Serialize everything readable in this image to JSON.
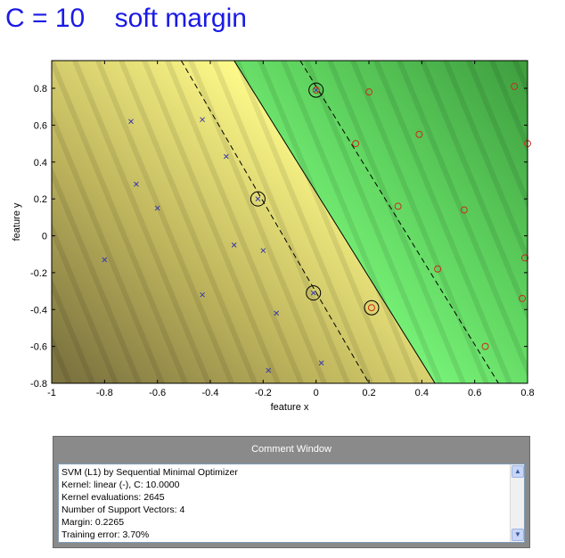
{
  "title": "C = 10    soft margin",
  "chart_data": {
    "type": "scatter",
    "xlabel": "feature x",
    "ylabel": "feature y",
    "xlim": [
      -1,
      0.8
    ],
    "ylim": [
      -0.8,
      0.95
    ],
    "xticks": [
      -1,
      -0.8,
      -0.6,
      -0.4,
      -0.2,
      0,
      0.2,
      0.4,
      0.6,
      0.8
    ],
    "xtick_labels": [
      "-1",
      "-0.8",
      "-0.6",
      "-0.4",
      "-0.2",
      "0",
      "0.2",
      "0.4",
      "0.6",
      "0.8"
    ],
    "yticks": [
      -0.8,
      -0.6,
      -0.4,
      -0.2,
      0,
      0.2,
      0.4,
      0.6,
      0.8
    ],
    "ytick_labels": [
      "-0.8",
      "-0.6",
      "-0.4",
      "-0.2",
      "0",
      "0.2",
      "0.4",
      "0.6",
      "0.8"
    ],
    "decision_boundary": [
      [
        -0.31,
        0.95
      ],
      [
        0.45,
        -0.8
      ]
    ],
    "margin_lines": [
      [
        [
          -0.51,
          0.95
        ],
        [
          0.2,
          -0.8
        ]
      ],
      [
        [
          -0.06,
          0.95
        ],
        [
          0.69,
          -0.8
        ]
      ]
    ],
    "series": [
      {
        "marker": "x",
        "color": "#3a3aa8",
        "points": [
          [
            -0.7,
            0.62
          ],
          [
            -0.43,
            0.63
          ],
          [
            -0.34,
            0.43
          ],
          [
            -0.68,
            0.28
          ],
          [
            -0.6,
            0.15
          ],
          [
            -0.22,
            0.2
          ],
          [
            -0.31,
            -0.05
          ],
          [
            -0.2,
            -0.08
          ],
          [
            -0.8,
            -0.13
          ],
          [
            -0.43,
            -0.32
          ],
          [
            -0.15,
            -0.42
          ],
          [
            -0.01,
            -0.31
          ],
          [
            -0.18,
            -0.73
          ],
          [
            0.02,
            -0.69
          ],
          [
            0.0,
            0.79
          ]
        ]
      },
      {
        "marker": "o",
        "color": "#cc2a1a",
        "points": [
          [
            0.0,
            0.79
          ],
          [
            0.2,
            0.78
          ],
          [
            0.75,
            0.81
          ],
          [
            0.15,
            0.5
          ],
          [
            0.39,
            0.55
          ],
          [
            0.8,
            0.5
          ],
          [
            0.31,
            0.16
          ],
          [
            0.56,
            0.14
          ],
          [
            0.79,
            -0.12
          ],
          [
            0.46,
            -0.18
          ],
          [
            0.78,
            -0.34
          ],
          [
            0.21,
            -0.39
          ],
          [
            0.64,
            -0.6
          ]
        ]
      }
    ],
    "support_vectors": [
      [
        0.0,
        0.79
      ],
      [
        -0.22,
        0.2
      ],
      [
        -0.01,
        -0.31
      ],
      [
        0.21,
        -0.39
      ]
    ]
  },
  "comment_window": {
    "title": "Comment Window",
    "lines": [
      "SVM (L1) by Sequential Minimal Optimizer",
      "Kernel: linear (-), C: 10.0000",
      "Kernel evaluations: 2645",
      "Number of Support Vectors: 4",
      "Margin: 0.2265",
      "Training error: 3.70%"
    ],
    "scroll_up_icon": "chevron-up-icon",
    "scroll_down_icon": "chevron-down-icon"
  }
}
